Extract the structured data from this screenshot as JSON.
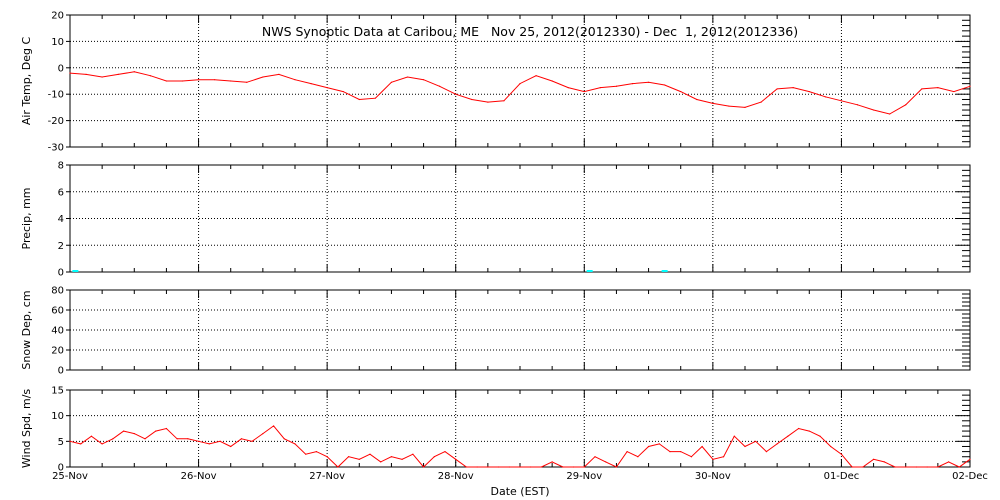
{
  "title": "NWS Synoptic Data at Caribou, ME   Nov 25, 2012(2012330) - Dec  1, 2012(2012336)",
  "xlabel": "Date (EST)",
  "x_ticks": [
    "25-Nov",
    "26-Nov",
    "27-Nov",
    "28-Nov",
    "29-Nov",
    "30-Nov",
    "01-Dec",
    "02-Dec"
  ],
  "colors": {
    "line": "#ff0000",
    "precip": "#00ffff",
    "axis": "#000000"
  },
  "chart_data": [
    {
      "type": "line",
      "ylabel": "Air Temp, Deg C",
      "ylim": [
        -30,
        20
      ],
      "yticks": [
        -30,
        -20,
        -10,
        0,
        10,
        20
      ],
      "grid": true,
      "x_unit": "hours since 25-Nov 00:00 EST",
      "series": [
        {
          "x": [
            0,
            3,
            6,
            9,
            12,
            15,
            18,
            21,
            24,
            27,
            30,
            33,
            36,
            39,
            42,
            45,
            48,
            51,
            54,
            57,
            60,
            63,
            66,
            69,
            72,
            75,
            78,
            81,
            84,
            87,
            90,
            93,
            96,
            99,
            102,
            105,
            108,
            111,
            114,
            117,
            120,
            123,
            126,
            129,
            132,
            135,
            138,
            141,
            144,
            147,
            150,
            153,
            156,
            159,
            162,
            165,
            168
          ],
          "values": [
            -2,
            -2.5,
            -3.5,
            -2.5,
            -1.5,
            -3,
            -5,
            -5,
            -4.5,
            -4.5,
            -5,
            -5.5,
            -3.5,
            -2.5,
            -4.5,
            -6,
            -7.5,
            -9,
            -12,
            -11.5,
            -5.5,
            -3.5,
            -4.5,
            -7,
            -10,
            -12,
            -13,
            -12.5,
            -6,
            -3,
            -5,
            -7.5,
            -9,
            -7.5,
            -7,
            -6,
            -5.5,
            -6.5,
            -9,
            -12,
            -13.5,
            -14.5,
            -15,
            -13,
            -8,
            -7.5,
            -9,
            -11,
            -12.5,
            -14,
            -16,
            -17.5,
            -14,
            -8,
            -7.5,
            -9,
            -7
          ]
        }
      ]
    },
    {
      "type": "bar",
      "ylabel": "Precip, mm",
      "ylim": [
        0,
        8
      ],
      "yticks": [
        0,
        2,
        4,
        6,
        8
      ],
      "grid": true,
      "x_unit": "hours since 25-Nov 00:00 EST",
      "series": [
        {
          "x": [
            1,
            97,
            111
          ],
          "values": [
            0.1,
            0.1,
            0.1
          ]
        }
      ]
    },
    {
      "type": "line",
      "ylabel": "Snow Dep, cm",
      "ylim": [
        0,
        80
      ],
      "yticks": [
        0,
        20,
        40,
        60,
        80
      ],
      "grid": true,
      "series": []
    },
    {
      "type": "line",
      "ylabel": "Wind Spd, m/s",
      "ylim": [
        0,
        15
      ],
      "yticks": [
        0,
        5,
        10,
        15
      ],
      "grid": true,
      "x_unit": "hours since 25-Nov 00:00 EST",
      "series": [
        {
          "x": [
            0,
            2,
            4,
            6,
            8,
            10,
            12,
            14,
            16,
            18,
            20,
            22,
            24,
            26,
            28,
            30,
            32,
            34,
            36,
            38,
            40,
            42,
            44,
            46,
            48,
            50,
            52,
            54,
            56,
            58,
            60,
            62,
            64,
            66,
            68,
            70,
            72,
            74,
            76,
            78,
            80,
            82,
            84,
            86,
            88,
            90,
            92,
            94,
            96,
            98,
            100,
            102,
            104,
            106,
            108,
            110,
            112,
            114,
            116,
            118,
            120,
            122,
            124,
            126,
            128,
            130,
            132,
            134,
            136,
            138,
            140,
            142,
            144,
            146,
            148,
            150,
            152,
            154,
            156,
            158,
            160,
            162,
            164,
            166,
            168
          ],
          "values": [
            5,
            4.5,
            6,
            4.5,
            5.5,
            7,
            6.5,
            5.5,
            7,
            7.5,
            5.5,
            5.5,
            5,
            4.5,
            5,
            4,
            5.5,
            5,
            6.5,
            8,
            5.5,
            4.5,
            2.5,
            3,
            2,
            0,
            2,
            1.5,
            2.5,
            1,
            2,
            1.5,
            2.5,
            0,
            2,
            3,
            1.5,
            0,
            0,
            0,
            0,
            0,
            0,
            0,
            0,
            1,
            0,
            0,
            0,
            2,
            1,
            0,
            3,
            2,
            4,
            4.5,
            3,
            3,
            2,
            4,
            1.5,
            2,
            6,
            4,
            5,
            3,
            4.5,
            6,
            7.5,
            7,
            6,
            4,
            2.5,
            0,
            0,
            1.5,
            1,
            0,
            0,
            0,
            0,
            0,
            1,
            0,
            1.5
          ]
        }
      ]
    }
  ]
}
